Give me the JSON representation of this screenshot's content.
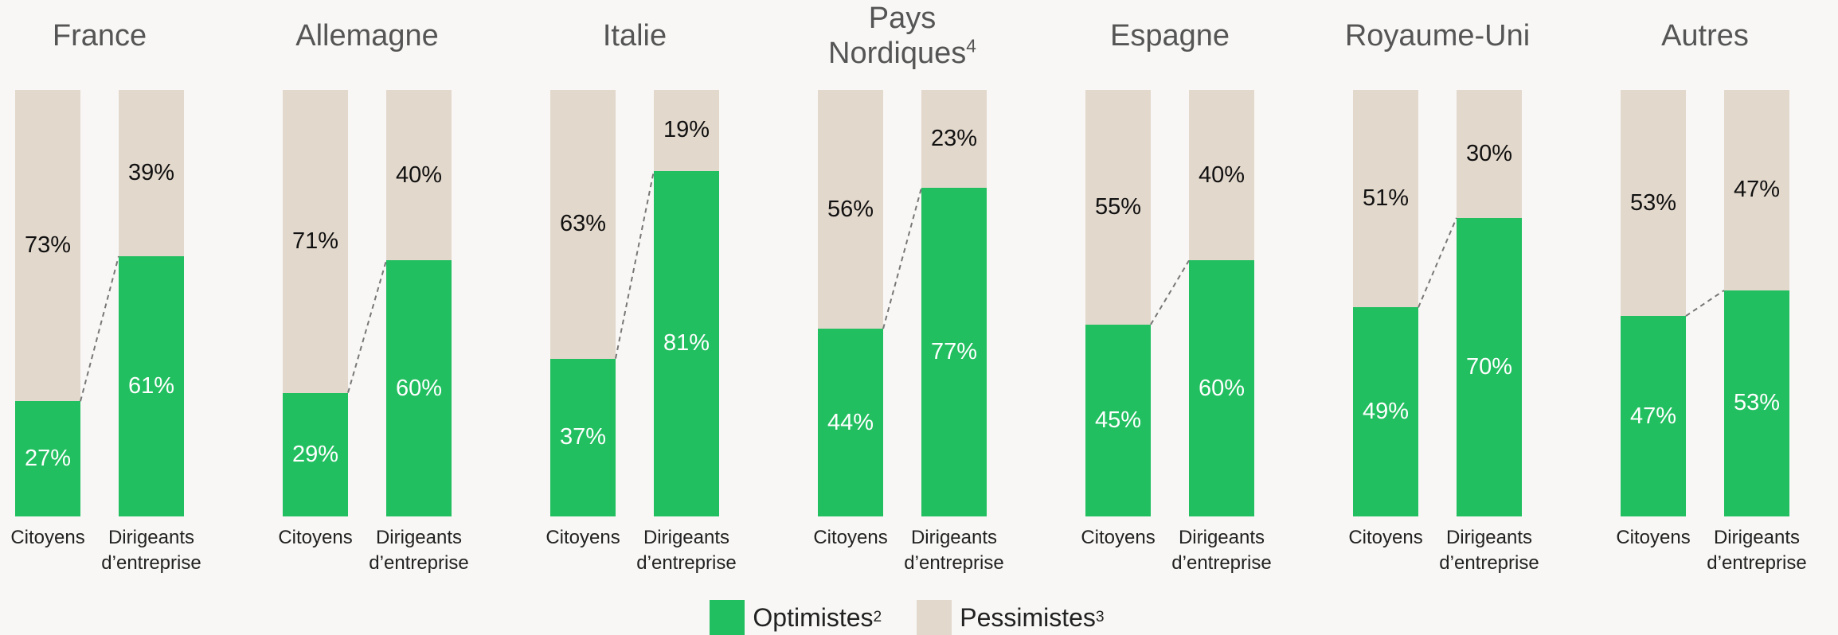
{
  "chart_data": {
    "type": "bar",
    "stacked": true,
    "ylim": [
      0,
      100
    ],
    "categories": [
      "Citoyens",
      "Dirigeants d’entreprise"
    ],
    "series": [
      {
        "name": "Optimistes",
        "note": "2",
        "color": "#22bf60",
        "label_color": "#ffffff"
      },
      {
        "name": "Pessimistes",
        "note": "3",
        "color": "#e3d8cc",
        "label_color": "#111111"
      }
    ],
    "panels": [
      {
        "title": "France",
        "values": [
          [
            27,
            61
          ],
          [
            73,
            39
          ]
        ],
        "value_labels": [
          [
            "27%",
            "61%"
          ],
          [
            "73%",
            "39%"
          ]
        ]
      },
      {
        "title": "Allemagne",
        "values": [
          [
            29,
            60
          ],
          [
            71,
            40
          ]
        ],
        "value_labels": [
          [
            "29%",
            "60%"
          ],
          [
            "71%",
            "40%"
          ]
        ]
      },
      {
        "title": "Italie",
        "values": [
          [
            37,
            81
          ],
          [
            63,
            19
          ]
        ],
        "value_labels": [
          [
            "37%",
            "81%"
          ],
          [
            "63%",
            "19%"
          ]
        ]
      },
      {
        "title": "Pays Nordiques",
        "note": "4",
        "values": [
          [
            44,
            77
          ],
          [
            56,
            23
          ]
        ],
        "value_labels": [
          [
            "44%",
            "77%"
          ],
          [
            "56%",
            "23%"
          ]
        ]
      },
      {
        "title": "Espagne",
        "values": [
          [
            45,
            60
          ],
          [
            55,
            40
          ]
        ],
        "value_labels": [
          [
            "45%",
            "60%"
          ],
          [
            "55%",
            "40%"
          ]
        ]
      },
      {
        "title": "Royaume-Uni",
        "values": [
          [
            49,
            70
          ],
          [
            51,
            30
          ]
        ],
        "value_labels": [
          [
            "49%",
            "70%"
          ],
          [
            "51%",
            "30%"
          ]
        ]
      },
      {
        "title": "Autres",
        "values": [
          [
            47,
            53
          ],
          [
            53,
            47
          ]
        ],
        "value_labels": [
          [
            "47%",
            "53%"
          ],
          [
            "53%",
            "47%"
          ]
        ]
      }
    ]
  }
}
